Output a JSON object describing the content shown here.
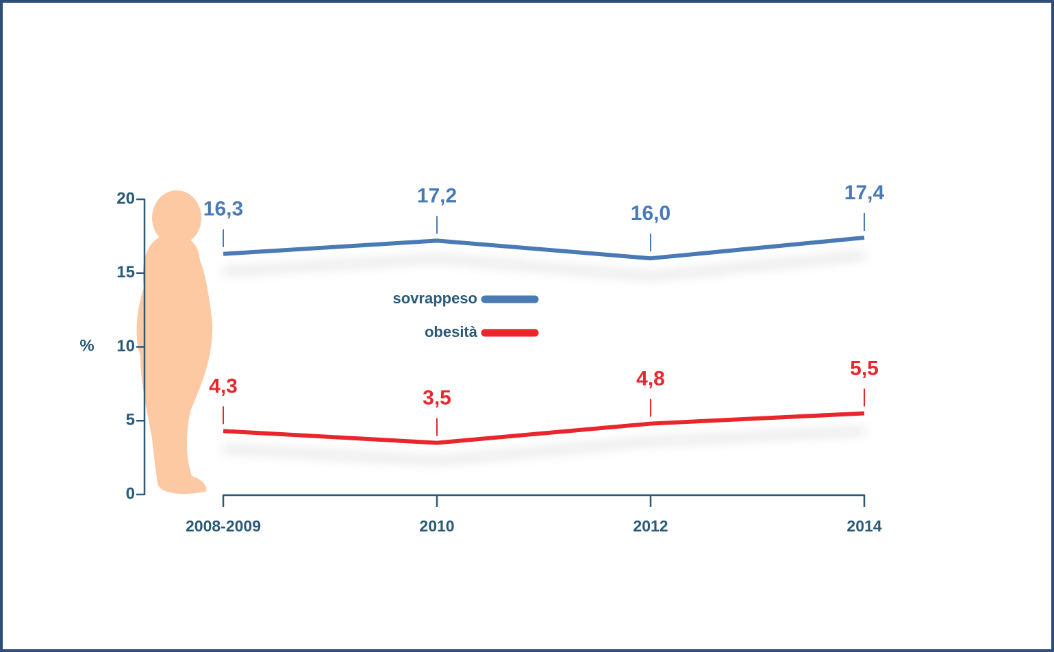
{
  "chart_data": {
    "type": "line",
    "ylabel": "%",
    "categories": [
      "2008-2009",
      "2010",
      "2012",
      "2014"
    ],
    "series": [
      {
        "name": "sovrappeso",
        "color": "#4a7ab5",
        "values": [
          16.3,
          17.2,
          16.0,
          17.4
        ],
        "value_labels": [
          "16,3",
          "17,2",
          "16,0",
          "17,4"
        ]
      },
      {
        "name": "obesità",
        "color": "#e8262b",
        "values": [
          4.3,
          3.5,
          4.8,
          5.5
        ],
        "value_labels": [
          "4,3",
          "3,5",
          "4,8",
          "5,5"
        ]
      }
    ],
    "ylim": [
      0,
      20
    ],
    "yticks": [
      0,
      5,
      10,
      15,
      20
    ],
    "grid": false
  }
}
